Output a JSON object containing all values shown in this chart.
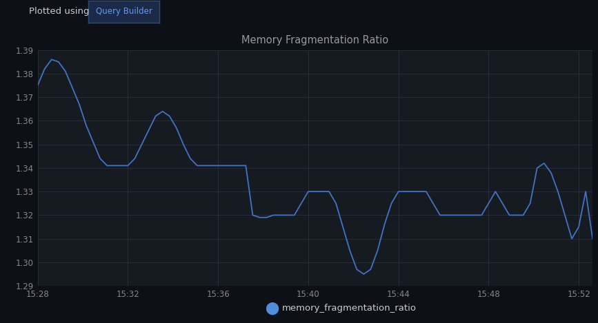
{
  "title": "Memory Fragmentation Ratio",
  "header_text": "Plotted using",
  "button_text": "Query Builder",
  "legend_label": "memory_fragmentation_ratio",
  "background_color": "#0d1117",
  "plot_bg_color": "#161b22",
  "line_color": "#4472c4",
  "legend_dot_color": "#4d8fdb",
  "grid_color": "#2a3040",
  "title_color": "#999999",
  "text_color": "#cccccc",
  "tick_color": "#888888",
  "button_bg": "#1c2a4a",
  "button_border": "#2e4a7a",
  "button_text_color": "#6699ee",
  "ylim": [
    1.29,
    1.39
  ],
  "yticks": [
    1.29,
    1.3,
    1.31,
    1.32,
    1.33,
    1.34,
    1.35,
    1.36,
    1.37,
    1.38,
    1.39
  ],
  "xtick_labels": [
    "15:28",
    "15:32",
    "15:36",
    "15:40",
    "15:44",
    "15:48",
    "15:52"
  ],
  "x_values": [
    0,
    1,
    2,
    3,
    4,
    5,
    6,
    7,
    8,
    9,
    10,
    11,
    12,
    13,
    14,
    15,
    16,
    17,
    18,
    19,
    20,
    21,
    22,
    23,
    24,
    25,
    26,
    27,
    28,
    29,
    30,
    31,
    32,
    33,
    34,
    35,
    36,
    37,
    38,
    39,
    40,
    41,
    42,
    43,
    44,
    45,
    46,
    47,
    48,
    49,
    50,
    51,
    52,
    53,
    54,
    55,
    56,
    57,
    58,
    59,
    60,
    61,
    62,
    63,
    64,
    65,
    66,
    67,
    68,
    69,
    70,
    71,
    72,
    73,
    74,
    75,
    76,
    77,
    78,
    79,
    80
  ],
  "y_values": [
    1.375,
    1.382,
    1.386,
    1.385,
    1.381,
    1.374,
    1.367,
    1.358,
    1.351,
    1.344,
    1.341,
    1.341,
    1.341,
    1.341,
    1.344,
    1.35,
    1.356,
    1.362,
    1.364,
    1.362,
    1.357,
    1.35,
    1.344,
    1.341,
    1.341,
    1.341,
    1.341,
    1.341,
    1.341,
    1.341,
    1.341,
    1.32,
    1.319,
    1.319,
    1.32,
    1.32,
    1.32,
    1.32,
    1.325,
    1.33,
    1.33,
    1.33,
    1.33,
    1.325,
    1.315,
    1.305,
    1.297,
    1.295,
    1.297,
    1.305,
    1.316,
    1.325,
    1.33,
    1.33,
    1.33,
    1.33,
    1.33,
    1.325,
    1.32,
    1.32,
    1.32,
    1.32,
    1.32,
    1.32,
    1.32,
    1.325,
    1.33,
    1.325,
    1.32,
    1.32,
    1.32,
    1.325,
    1.34,
    1.342,
    1.338,
    1.33,
    1.32,
    1.31,
    1.315,
    1.33,
    1.31
  ],
  "xtick_positions": [
    0,
    13,
    26,
    39,
    52,
    65,
    78
  ]
}
